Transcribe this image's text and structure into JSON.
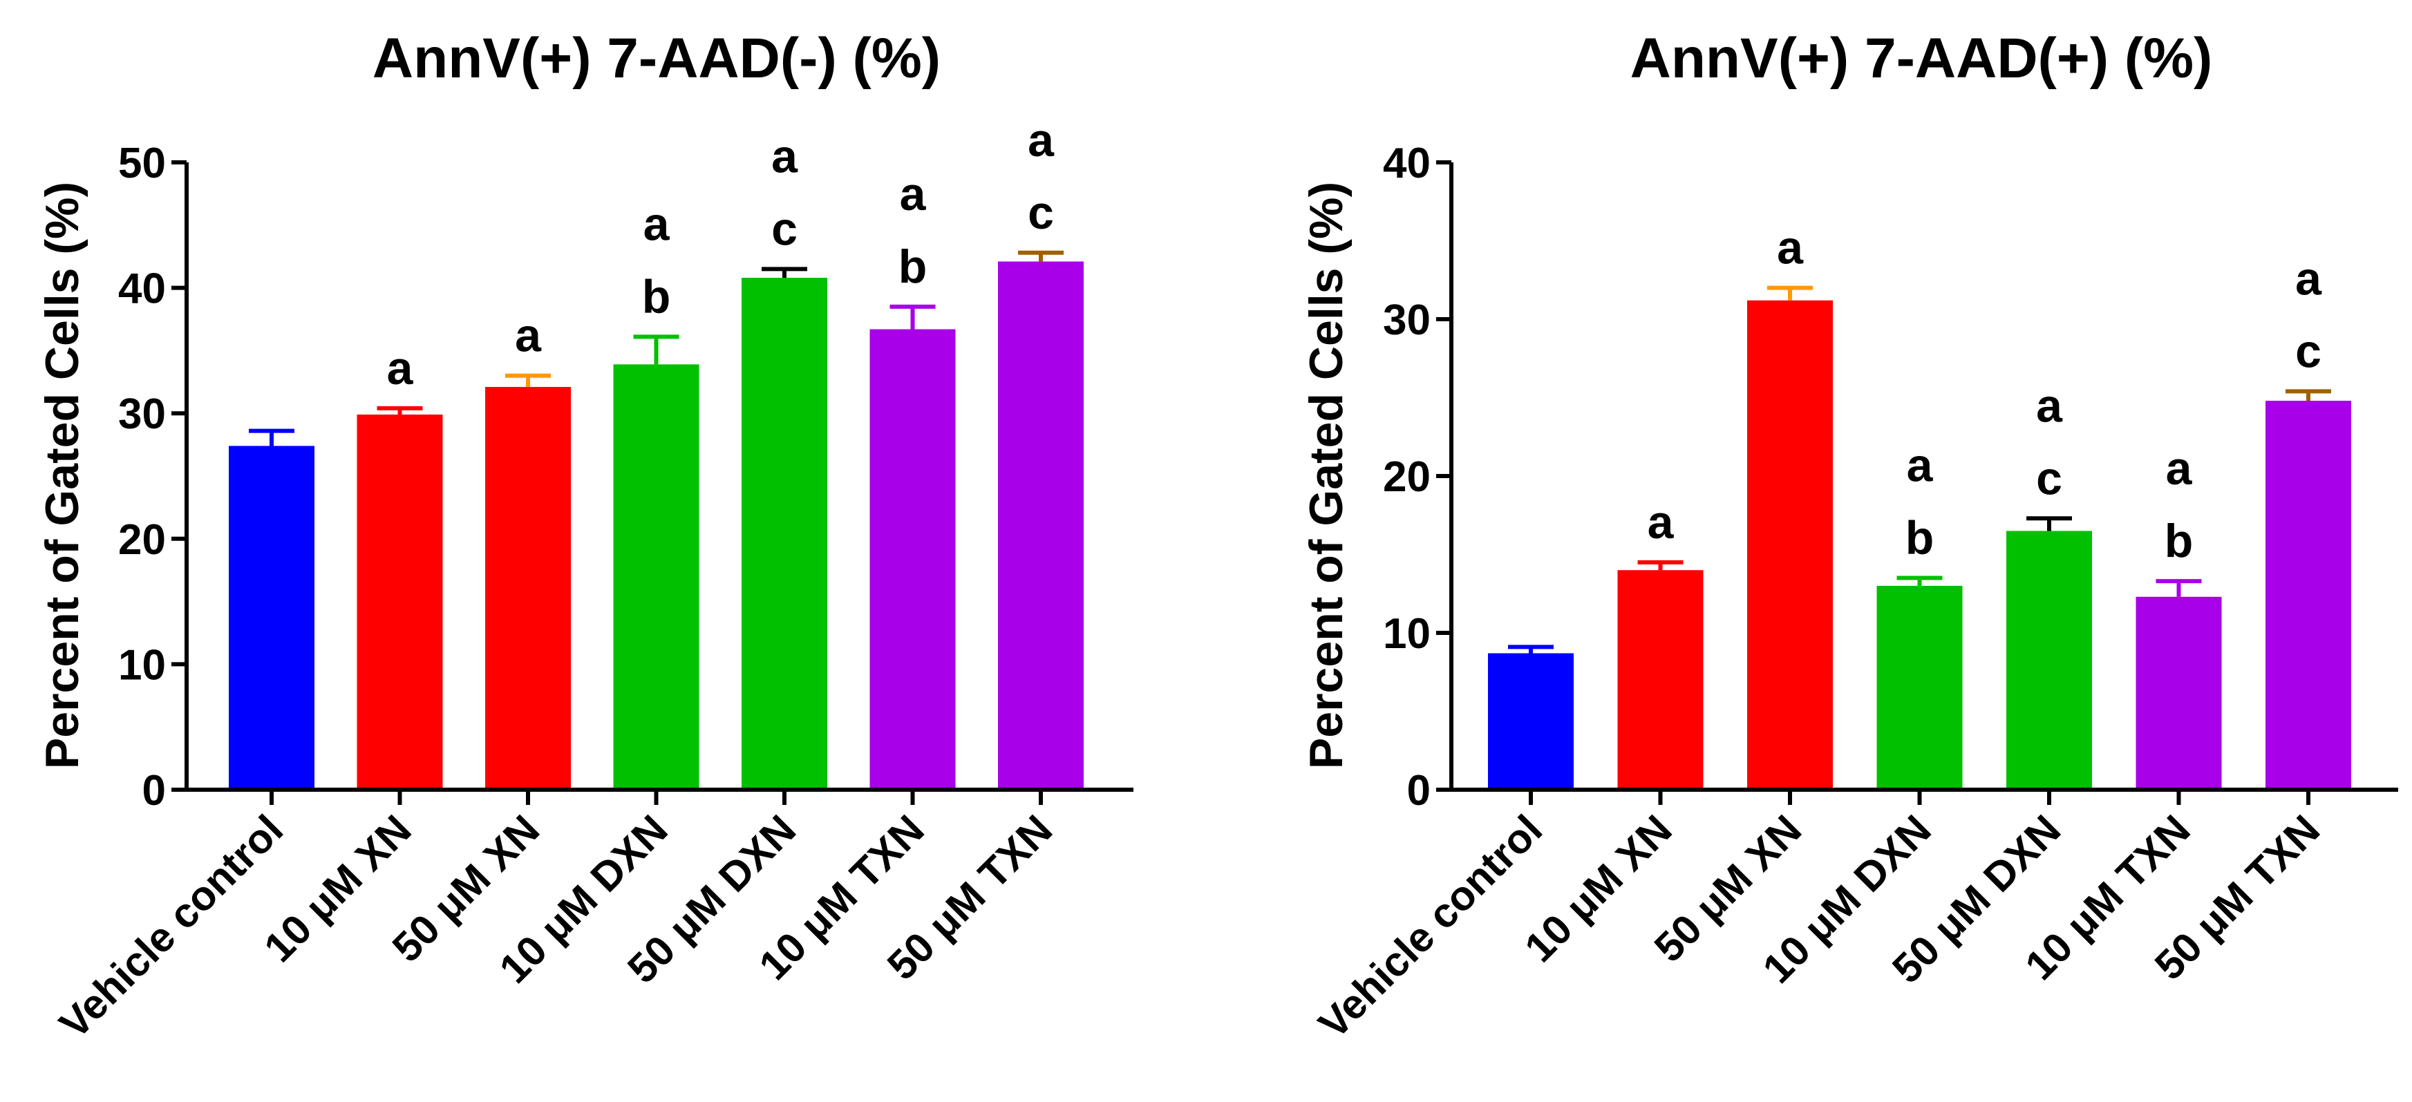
{
  "chart_data": [
    {
      "type": "bar",
      "title": "AnnV(+) 7-AAD(-) (%)",
      "ylabel": "Percent of Gated Cells (%)",
      "xlabel": "",
      "ylim": [
        0,
        50
      ],
      "yticks": [
        0,
        10,
        20,
        30,
        40,
        50
      ],
      "categories": [
        "Vehicle control",
        "10 μM XN",
        "50 μM XN",
        "10 μM DXN",
        "50 μM DXN",
        "10 μM TXN",
        "50 μM TXN"
      ],
      "values": [
        27.4,
        29.9,
        32.1,
        33.9,
        40.8,
        36.7,
        42.1
      ],
      "errors": [
        1.2,
        0.5,
        0.9,
        2.2,
        0.7,
        1.8,
        0.7
      ],
      "colors": [
        "#0000ff",
        "#ff0000",
        "#ff0000",
        "#00c000",
        "#00c000",
        "#a800e8",
        "#a800e8"
      ],
      "error_colors": [
        "#0000ff",
        "#ff0000",
        "#ff9900",
        "#00c000",
        "#000000",
        "#a800e8",
        "#a06000"
      ],
      "significance": [
        [],
        [
          "a"
        ],
        [
          "a"
        ],
        [
          "a",
          "b"
        ],
        [
          "a",
          "c"
        ],
        [
          "a",
          "b"
        ],
        [
          "a",
          "c"
        ]
      ],
      "grid": false,
      "legend": "none"
    },
    {
      "type": "bar",
      "title": "AnnV(+) 7-AAD(+) (%)",
      "ylabel": "Percent of Gated Cells (%)",
      "xlabel": "",
      "ylim": [
        0,
        40
      ],
      "yticks": [
        0,
        10,
        20,
        30,
        40
      ],
      "categories": [
        "Vehicle control",
        "10 μM XN",
        "50 μM XN",
        "10 μM DXN",
        "50 μM DXN",
        "10 μM TXN",
        "50 μM TXN"
      ],
      "values": [
        8.7,
        14.0,
        31.2,
        13.0,
        16.5,
        12.3,
        24.8
      ],
      "errors": [
        0.4,
        0.5,
        0.8,
        0.5,
        0.8,
        1.0,
        0.6
      ],
      "colors": [
        "#0000ff",
        "#ff0000",
        "#ff0000",
        "#00c000",
        "#00c000",
        "#a800e8",
        "#a800e8"
      ],
      "error_colors": [
        "#0000ff",
        "#ff0000",
        "#ff9900",
        "#00c000",
        "#000000",
        "#a800e8",
        "#a06000"
      ],
      "significance": [
        [],
        [
          "a"
        ],
        [
          "a"
        ],
        [
          "a",
          "b"
        ],
        [
          "a",
          "c"
        ],
        [
          "a",
          "b"
        ],
        [
          "a",
          "c"
        ]
      ],
      "grid": false,
      "legend": "none"
    }
  ]
}
